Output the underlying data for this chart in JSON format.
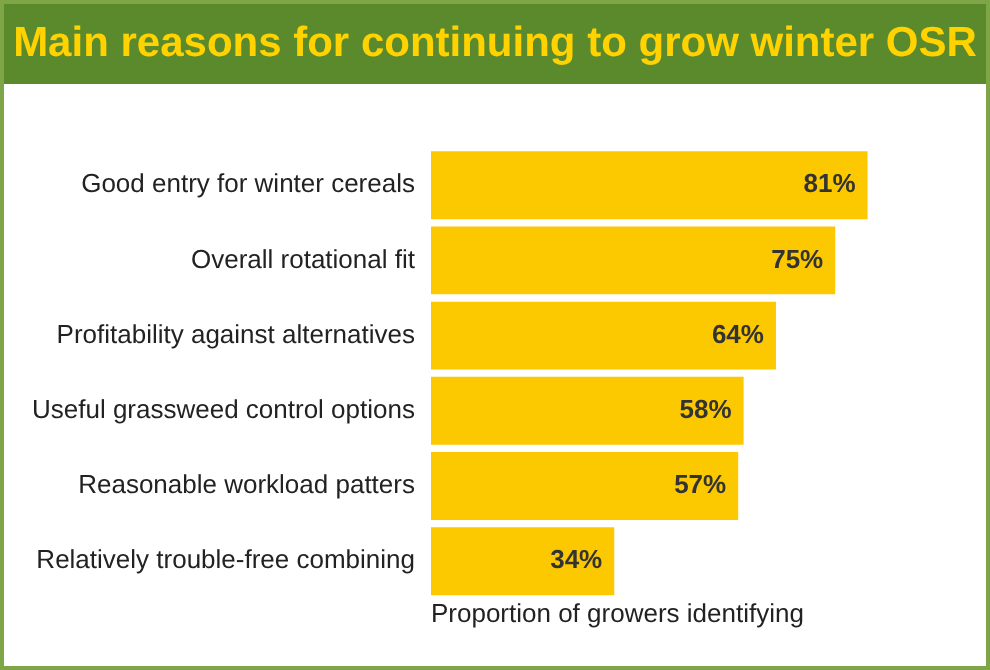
{
  "chart_data": {
    "type": "bar",
    "orientation": "horizontal",
    "title": "Main reasons for continuing to grow winter OSR",
    "xlabel": "Proportion of growers identifying",
    "categories": [
      "Good entry for winter cereals",
      "Overall rotational fit",
      "Profitability against alternatives",
      "Useful grassweed control options",
      "Reasonable workload patters",
      "Relatively trouble-free combining"
    ],
    "values": [
      81,
      75,
      64,
      58,
      57,
      34
    ],
    "value_labels": [
      "81%",
      "75%",
      "64%",
      "58%",
      "57%",
      "34%"
    ],
    "color": "#fcc800",
    "tick_labels": "y",
    "grid": false,
    "legend": false
  }
}
